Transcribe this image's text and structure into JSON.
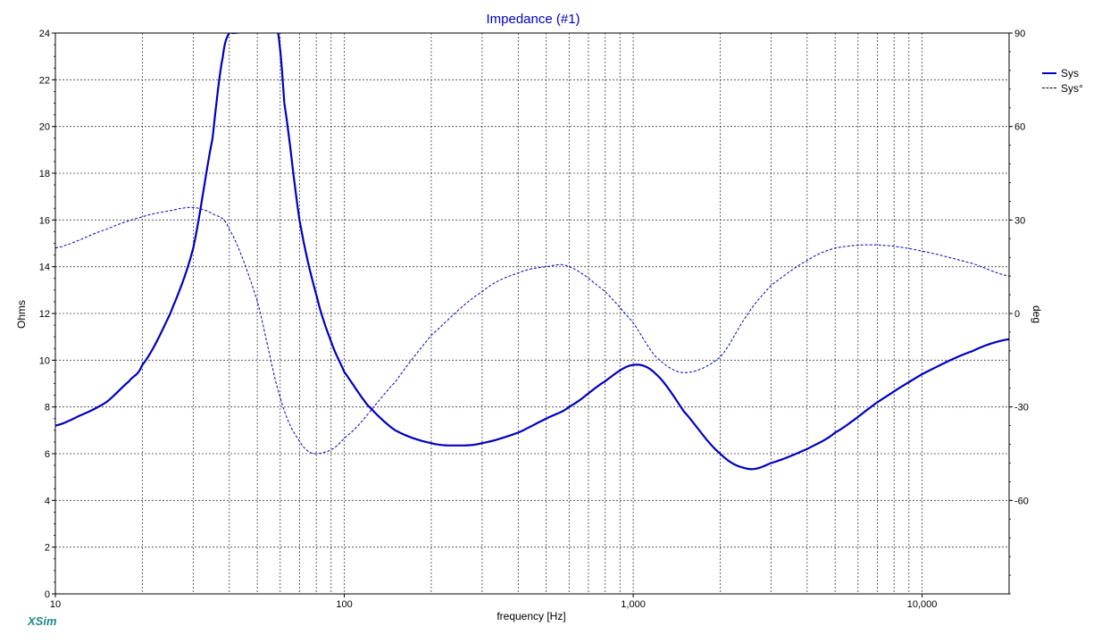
{
  "chart_data": {
    "type": "line",
    "title": "Impedance (#1)",
    "xlabel": "frequency [Hz]",
    "ylabel_left": "Ohms",
    "ylabel_right": "deg",
    "x_scale": "log",
    "xlim": [
      10,
      20000
    ],
    "ylim_left": [
      0,
      24
    ],
    "ylim_right": [
      -90,
      90
    ],
    "x_ticks": [
      10,
      100,
      1000,
      10000
    ],
    "x_tick_labels": [
      "10",
      "100",
      "1,000",
      "10,000"
    ],
    "y_left_ticks": [
      0,
      2,
      4,
      6,
      8,
      10,
      12,
      14,
      16,
      18,
      20,
      22,
      24
    ],
    "y_right_ticks": [
      -60,
      -30,
      0,
      30,
      60,
      90
    ],
    "y_right_tick_labels": [
      "-60",
      "-30",
      "0",
      "30",
      "60",
      "90"
    ],
    "grid": true,
    "legend_position": "top-right",
    "series": [
      {
        "name": "Sys",
        "axis": "left",
        "style": "solid",
        "color": "#0000c0",
        "x": [
          10,
          12,
          15,
          18,
          20,
          25,
          30,
          35,
          38,
          40,
          41,
          59,
          62,
          70,
          80,
          90,
          100,
          120,
          150,
          200,
          250,
          300,
          400,
          500,
          600,
          800,
          1000,
          1200,
          1500,
          2000,
          2500,
          3000,
          4000,
          5000,
          7000,
          10000,
          15000,
          20000
        ],
        "y": [
          7.2,
          7.6,
          8.2,
          9.1,
          9.8,
          12.0,
          14.8,
          19.5,
          23.0,
          24.0,
          24.0,
          24.0,
          21.0,
          16.0,
          12.8,
          10.8,
          9.5,
          8.1,
          7.0,
          6.45,
          6.35,
          6.45,
          6.9,
          7.5,
          8.0,
          9.1,
          9.8,
          9.4,
          7.8,
          6.0,
          5.35,
          5.6,
          6.2,
          6.9,
          8.2,
          9.4,
          10.4,
          10.9
        ]
      },
      {
        "name": "Sys°",
        "axis": "right",
        "style": "dashed",
        "color": "#0000c0",
        "x": [
          10,
          15,
          20,
          25,
          30,
          35,
          40,
          50,
          60,
          70,
          80,
          100,
          150,
          200,
          300,
          400,
          500,
          600,
          800,
          1000,
          1200,
          1500,
          2000,
          2500,
          3000,
          4000,
          5000,
          7000,
          10000,
          15000,
          20000
        ],
        "y": [
          21,
          27,
          31,
          33,
          34,
          32,
          27,
          4,
          -27,
          -41,
          -45,
          -40,
          -22,
          -7,
          7,
          13,
          15,
          15,
          7,
          -3,
          -14,
          -19,
          -14,
          0,
          9,
          17,
          21,
          22,
          20,
          16,
          12
        ]
      }
    ]
  },
  "brand": "XSim"
}
